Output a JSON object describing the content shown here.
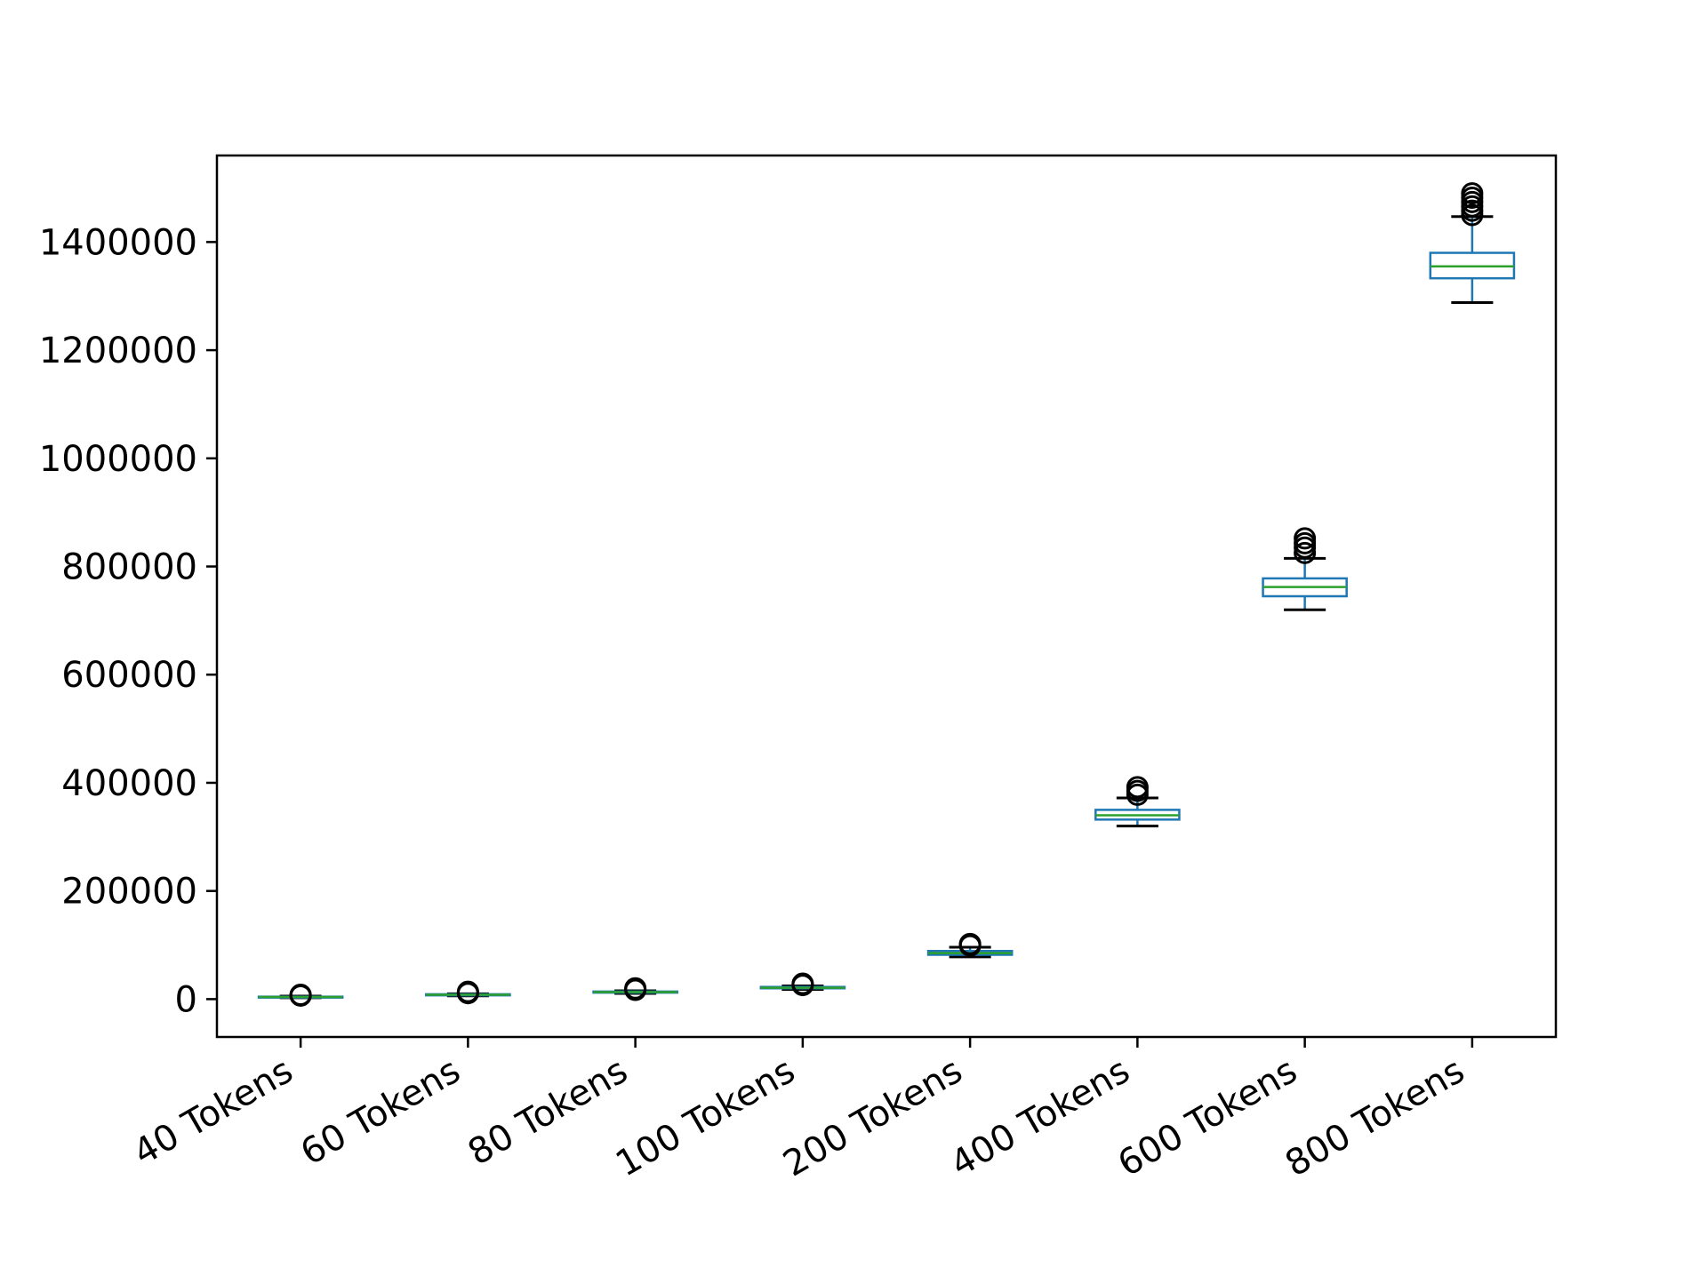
{
  "chart_data": {
    "type": "box",
    "title": "",
    "xlabel": "",
    "ylabel": "",
    "ylim": [
      -70000,
      1560000
    ],
    "yticks": [
      0,
      200000,
      400000,
      600000,
      800000,
      1000000,
      1200000,
      1400000
    ],
    "ytick_labels": [
      "0",
      "200000",
      "400000",
      "600000",
      "800000",
      "1000000",
      "1200000",
      "1400000"
    ],
    "categories": [
      "40 Tokens",
      "60 Tokens",
      "80 Tokens",
      "100 Tokens",
      "200 Tokens",
      "400 Tokens",
      "600 Tokens",
      "800 Tokens"
    ],
    "grid": false,
    "colors": {
      "box": "#1f77b4",
      "median": "#2ca02c",
      "whisker_cap": "#000000",
      "outlier": "#000000"
    },
    "boxes": [
      {
        "whislo": 2500,
        "q1": 3500,
        "med": 4000,
        "q3": 4500,
        "whishi": 5500,
        "fliers": [
          6500,
          7500,
          8000
        ]
      },
      {
        "whislo": 6000,
        "q1": 7000,
        "med": 8000,
        "q3": 9000,
        "whishi": 10000,
        "fliers": [
          11000,
          12500,
          13500
        ]
      },
      {
        "whislo": 10500,
        "q1": 12000,
        "med": 13000,
        "q3": 14000,
        "whishi": 15500,
        "fliers": [
          17000,
          18500,
          20000
        ]
      },
      {
        "whislo": 18000,
        "q1": 20000,
        "med": 21000,
        "q3": 22500,
        "whishi": 24500,
        "fliers": [
          26000,
          27500,
          28500
        ]
      },
      {
        "whislo": 78000,
        "q1": 82000,
        "med": 85000,
        "q3": 89000,
        "whishi": 96000,
        "fliers": [
          99000,
          101000,
          102000
        ]
      },
      {
        "whislo": 320000,
        "q1": 332000,
        "med": 340000,
        "q3": 350000,
        "whishi": 372000,
        "fliers": [
          378000,
          385000,
          392000
        ]
      },
      {
        "whislo": 720000,
        "q1": 745000,
        "med": 762000,
        "q3": 778000,
        "whishi": 815000,
        "fliers": [
          825000,
          835000,
          843000,
          852000
        ]
      },
      {
        "whislo": 1288000,
        "q1": 1333000,
        "med": 1355000,
        "q3": 1380000,
        "whishi": 1447000,
        "fliers": [
          1450000,
          1458000,
          1466000,
          1474000,
          1482000,
          1490000
        ]
      }
    ]
  }
}
